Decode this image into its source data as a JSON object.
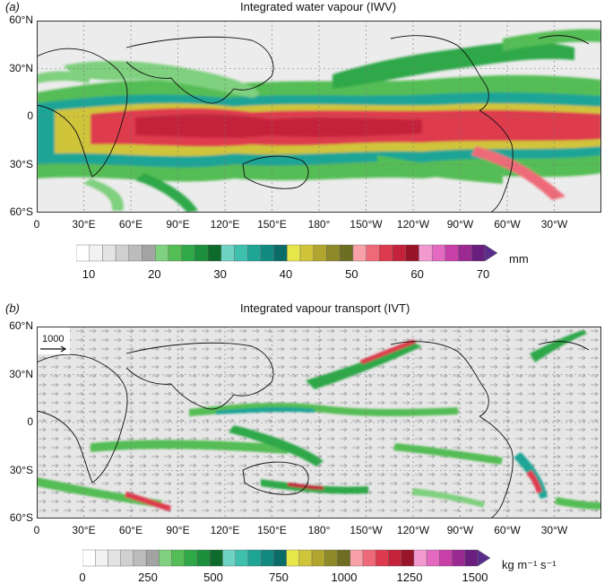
{
  "panel_a": {
    "letter": "(a)",
    "title": "Integrated water vapour (IWV)",
    "lat_labels": [
      "60°N",
      "30°N",
      "0",
      "30°S",
      "60°S"
    ],
    "lon_labels": [
      "0",
      "30°E",
      "60°E",
      "90°E",
      "120°E",
      "150°E",
      "180°",
      "150°W",
      "120°W",
      "90°W",
      "60°W",
      "30°W"
    ],
    "colorbar": {
      "labels": [
        "10",
        "20",
        "30",
        "40",
        "50",
        "60",
        "70"
      ],
      "units": "mm",
      "colors": [
        "#ffffff",
        "#f2f2f2",
        "#e3e3e3",
        "#d0d0d0",
        "#bcbcbc",
        "#a3a3a3",
        "#7fd07f",
        "#55bd55",
        "#2fa848",
        "#1c8f3c",
        "#0f6b2c",
        "#6fd3c3",
        "#3fbfae",
        "#1fa596",
        "#128a80",
        "#0b6b66",
        "#e6e64a",
        "#d0c43a",
        "#b2a52e",
        "#8e8a2a",
        "#6e6e22",
        "#f7a0a8",
        "#ee6a78",
        "#de3a4e",
        "#c4223a",
        "#981428",
        "#f29ad0",
        "#e36ac0",
        "#c83fa8",
        "#9a2a92",
        "#6a1f80"
      ]
    }
  },
  "panel_b": {
    "letter": "(b)",
    "title": "Integrated vapour transport (IVT)",
    "lat_labels": [
      "60°N",
      "30°N",
      "0",
      "30°S",
      "60°S"
    ],
    "lon_labels": [
      "0",
      "30°E",
      "60°E",
      "90°E",
      "120°E",
      "150°E",
      "180°",
      "150°W",
      "120°W",
      "90°W",
      "60°W",
      "30°W"
    ],
    "reference_vector": "1000",
    "colorbar": {
      "labels": [
        "0",
        "250",
        "500",
        "750",
        "1000",
        "1250",
        "1500"
      ],
      "units": "kg m⁻¹ s⁻¹",
      "colors": [
        "#ffffff",
        "#f2f2f2",
        "#e3e3e3",
        "#d0d0d0",
        "#bcbcbc",
        "#a3a3a3",
        "#7fd07f",
        "#55bd55",
        "#2fa848",
        "#1c8f3c",
        "#0f6b2c",
        "#6fd3c3",
        "#3fbfae",
        "#1fa596",
        "#128a80",
        "#0b6b66",
        "#e6e64a",
        "#d0c43a",
        "#b2a52e",
        "#8e8a2a",
        "#6e6e22",
        "#f7a0a8",
        "#ee6a78",
        "#de3a4e",
        "#c4223a",
        "#981428",
        "#f29ad0",
        "#e36ac0",
        "#c83fa8",
        "#9a2a92",
        "#6a1f80"
      ]
    }
  }
}
